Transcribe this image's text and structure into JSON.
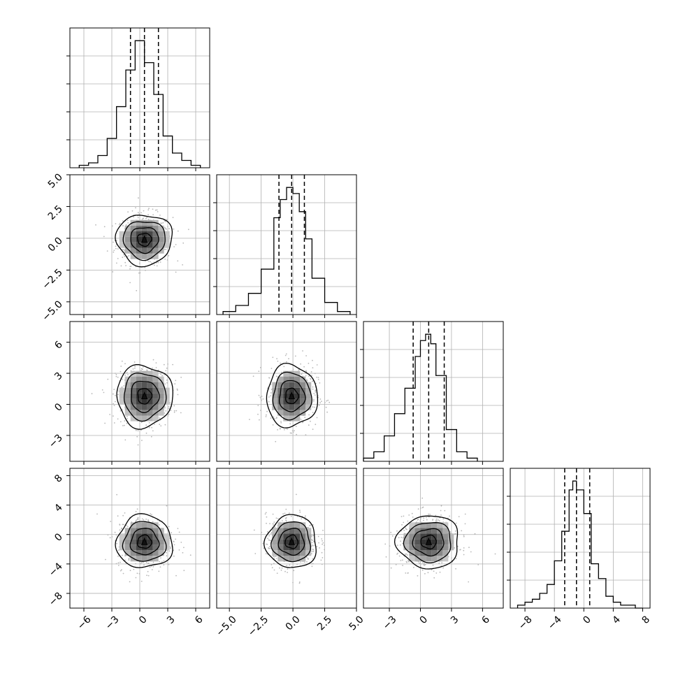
{
  "chart_data": {
    "type": "corner",
    "grid": true,
    "params": [
      {
        "range": [
          -7.5,
          7.5
        ],
        "ticks": [
          "−6",
          "−3",
          "0",
          "3",
          "6"
        ],
        "tick_values": [
          -6,
          -3,
          0,
          3,
          6
        ],
        "mean": 0.5,
        "sd": 1.5,
        "quantiles": [
          -1.0,
          0.5,
          2.0
        ]
      },
      {
        "range": [
          -6.0,
          5.0
        ],
        "ticks": [
          "−5.0",
          "−2.5",
          "0.0",
          "2.5",
          "5.0"
        ],
        "tick_values": [
          -5,
          -2.5,
          0,
          2.5,
          5
        ],
        "mean": -0.1,
        "sd": 1.0,
        "quantiles": [
          -1.1,
          -0.1,
          0.9
        ]
      },
      {
        "range": [
          -5.5,
          8.0
        ],
        "ticks": [
          "−3",
          "0",
          "3",
          "6"
        ],
        "tick_values": [
          -3,
          0,
          3,
          6
        ],
        "mean": 0.8,
        "sd": 1.5,
        "quantiles": [
          -0.7,
          0.8,
          2.3
        ]
      },
      {
        "range": [
          -10.0,
          9.0
        ],
        "ticks": [
          "−8",
          "−4",
          "0",
          "4",
          "8"
        ],
        "tick_values": [
          -8,
          -4,
          0,
          4,
          8
        ],
        "mean": -1.0,
        "sd": 1.8,
        "quantiles": [
          -2.6,
          -1.0,
          0.8
        ]
      }
    ],
    "histograms": [
      {
        "param": 0,
        "bin_edges": [
          -6.5,
          -5.5,
          -4.5,
          -3.5,
          -2.5,
          -1.5,
          -0.5,
          0.5,
          1.5,
          2.5,
          3.5,
          4.5,
          5.5,
          6.5
        ],
        "counts": [
          1,
          2,
          5,
          12,
          25,
          40,
          52,
          43,
          30,
          13,
          6,
          3,
          1
        ]
      },
      {
        "param": 1,
        "bin_edges": [
          -5.5,
          -4.5,
          -3.5,
          -2.5,
          -1.5,
          -1.0,
          -0.5,
          0.0,
          0.5,
          1.0,
          1.5,
          2.5,
          3.5,
          4.5
        ],
        "counts": [
          1,
          3,
          7,
          15,
          32,
          38,
          42,
          40,
          34,
          25,
          12,
          4,
          1
        ]
      },
      {
        "param": 2,
        "bin_edges": [
          -5.5,
          -4.5,
          -3.5,
          -2.5,
          -1.5,
          -0.5,
          0.0,
          0.5,
          1.0,
          1.5,
          2.5,
          3.5,
          4.5,
          5.5
        ],
        "counts": [
          1,
          3,
          8,
          15,
          23,
          33,
          38,
          40,
          37,
          27,
          10,
          3,
          1
        ]
      },
      {
        "param": 3,
        "bin_edges": [
          -9,
          -8,
          -7,
          -6,
          -5,
          -4,
          -3,
          -2,
          -1.5,
          -1,
          0,
          1,
          2,
          3,
          4,
          5,
          6,
          7,
          8
        ],
        "counts": [
          1,
          2,
          3,
          5,
          8,
          16,
          26,
          40,
          43,
          40,
          32,
          15,
          10,
          4,
          2,
          1,
          1,
          0
        ]
      }
    ],
    "pairs": [
      {
        "x": 0,
        "y": 1
      },
      {
        "x": 0,
        "y": 2
      },
      {
        "x": 1,
        "y": 2
      },
      {
        "x": 0,
        "y": 3
      },
      {
        "x": 1,
        "y": 3
      },
      {
        "x": 2,
        "y": 3
      }
    ]
  }
}
